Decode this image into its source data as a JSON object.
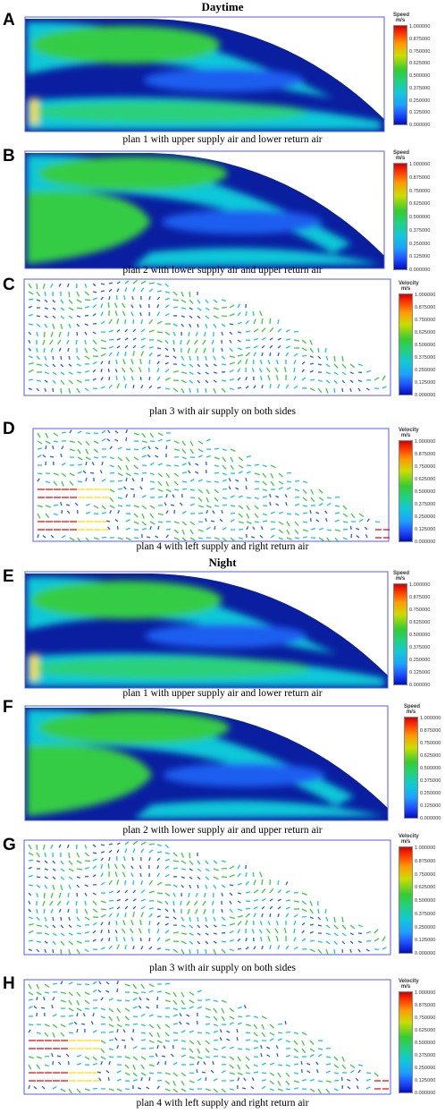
{
  "headings": {
    "daytime": "Daytime",
    "night": "Night"
  },
  "legend": {
    "speed_title": "Speed",
    "velocity_title": "Velocity",
    "unit": "m/s",
    "ticks": [
      "1.000000",
      "0.875000",
      "0.750000",
      "0.625000",
      "0.500000",
      "0.375000",
      "0.250000",
      "0.125000",
      "0.000000"
    ]
  },
  "panels": [
    {
      "letter": "A",
      "caption": "plan 1 with upper supply air and lower return air"
    },
    {
      "letter": "B",
      "caption": "plan 2 with lower supply air and upper return air"
    },
    {
      "letter": "C",
      "caption": "plan 3 with air supply on both sides"
    },
    {
      "letter": "D",
      "caption": "plan 4 with left supply and right return air"
    },
    {
      "letter": "E",
      "caption": "plan 1 with upper supply air and lower return air"
    },
    {
      "letter": "F",
      "caption": "plan 2 with lower supply air and upper return air"
    },
    {
      "letter": "G",
      "caption": "plan 3 with air supply on both sides"
    },
    {
      "letter": "H",
      "caption": "plan 4 with left supply and right return air"
    }
  ],
  "colors": {
    "frame": "#5a5ae6",
    "dark_blue": "#0a1ea0",
    "blue": "#1a5ef0",
    "cyan": "#10c8d8",
    "green": "#34cc44",
    "yellow": "#ffe000",
    "red": "#e81010"
  }
}
